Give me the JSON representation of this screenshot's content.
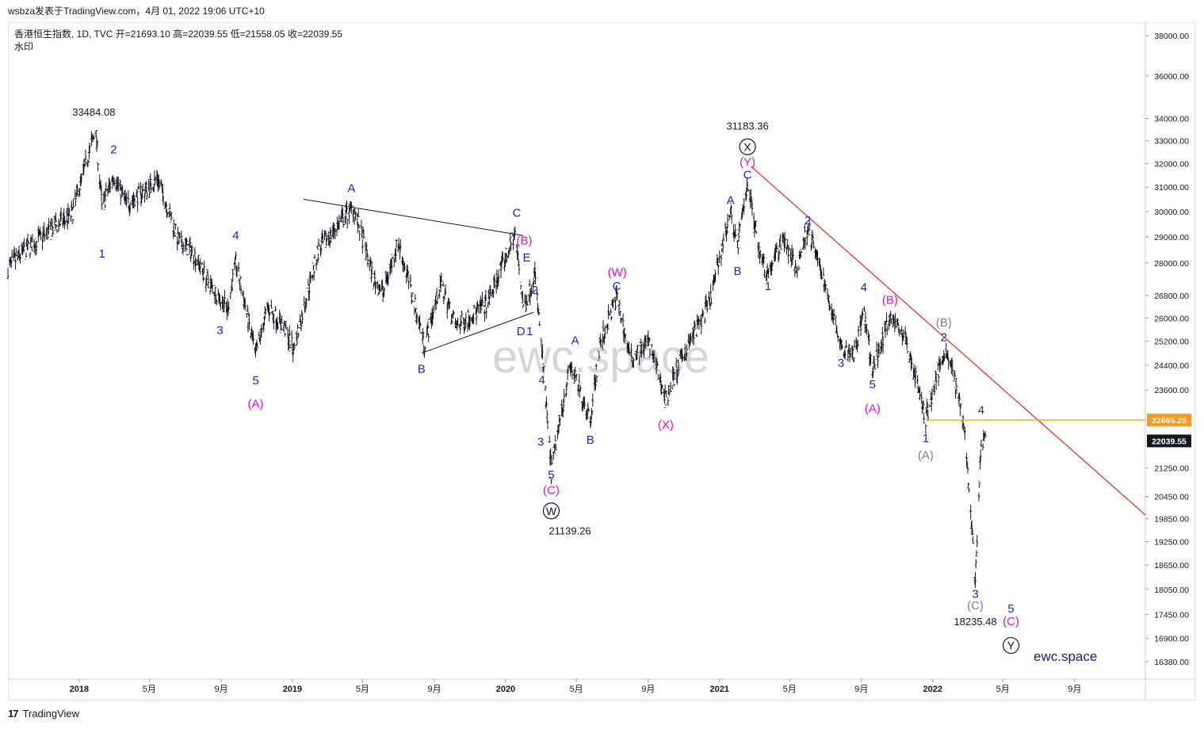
{
  "header": {
    "publisher_line": "wsbza发表于TradingView.com，4月 01, 2022 19:06 UTC+10"
  },
  "legend": {
    "symbol_line": "香港恒生指数, 1D, TVC  开=21693.10  高=22039.55  低=21558.05  收=22039.55",
    "watermark_label": "水印"
  },
  "watermark": "ewc.space",
  "brand": "ewc.space",
  "footer": {
    "logo": "17",
    "name": "TradingView"
  },
  "colors": {
    "price": "#131722",
    "blue_label": "#1e22c8",
    "magenta_label": "#e010c8",
    "grey_label": "#808080",
    "trendline": "#ee2222",
    "hline": "#f59a23",
    "triangle": "#131722"
  },
  "chart_data": {
    "type": "candlestick",
    "y_scale": "log",
    "ylim": [
      16000,
      38700
    ],
    "y_ticks": [
      "38000.00",
      "36000.00",
      "34000.00",
      "33000.00",
      "32000.00",
      "31000.00",
      "30000.00",
      "29000.00",
      "28000.00",
      "26800.00",
      "26000.00",
      "25200.00",
      "24400.00",
      "23600.00",
      "22665.25",
      "22039.55",
      "21250.00",
      "20450.00",
      "19850.00",
      "19250.00",
      "18650.00",
      "18050.00",
      "17450.00",
      "16900.00",
      "16380.00"
    ],
    "x_ticks": [
      {
        "label": "2018",
        "date": "2018-01-01",
        "bold": true
      },
      {
        "label": "5月",
        "date": "2018-05-01"
      },
      {
        "label": "9月",
        "date": "2018-09-01"
      },
      {
        "label": "2019",
        "date": "2019-01-01",
        "bold": true
      },
      {
        "label": "5月",
        "date": "2019-05-01"
      },
      {
        "label": "9月",
        "date": "2019-09-01"
      },
      {
        "label": "2020",
        "date": "2020-01-01",
        "bold": true
      },
      {
        "label": "5月",
        "date": "2020-05-01"
      },
      {
        "label": "9月",
        "date": "2020-09-01"
      },
      {
        "label": "2021",
        "date": "2021-01-01",
        "bold": true
      },
      {
        "label": "5月",
        "date": "2021-05-01"
      },
      {
        "label": "9月",
        "date": "2021-09-01"
      },
      {
        "label": "2022",
        "date": "2022-01-01",
        "bold": true
      },
      {
        "label": "5月",
        "date": "2022-05-01"
      },
      {
        "label": "9月",
        "date": "2022-09-01"
      }
    ],
    "price_badges": [
      {
        "value": "22665.25",
        "price": 22665.25,
        "color": "#f59a23"
      },
      {
        "value": "22039.55",
        "price": 22039.55,
        "color": "#131722"
      }
    ],
    "price_path": [
      [
        "2017-09-01",
        27800
      ],
      [
        "2017-10-01",
        28500
      ],
      [
        "2017-11-15",
        29300
      ],
      [
        "2017-12-20",
        29900
      ],
      [
        "2018-01-29",
        33484
      ],
      [
        "2018-02-09",
        30200
      ],
      [
        "2018-03-01",
        31500
      ],
      [
        "2018-03-23",
        30300
      ],
      [
        "2018-05-01",
        31000
      ],
      [
        "2018-05-15",
        31400
      ],
      [
        "2018-06-20",
        28800
      ],
      [
        "2018-07-15",
        28400
      ],
      [
        "2018-08-10",
        27300
      ],
      [
        "2018-09-12",
        26300
      ],
      [
        "2018-09-26",
        28000
      ],
      [
        "2018-10-30",
        24700
      ],
      [
        "2018-11-20",
        26400
      ],
      [
        "2018-12-20",
        25600
      ],
      [
        "2019-01-03",
        24900
      ],
      [
        "2019-02-15",
        28500
      ],
      [
        "2019-04-15",
        30200
      ],
      [
        "2019-05-20",
        27400
      ],
      [
        "2019-06-05",
        26900
      ],
      [
        "2019-07-01",
        28800
      ],
      [
        "2019-08-15",
        25100
      ],
      [
        "2019-09-12",
        27200
      ],
      [
        "2019-10-08",
        25700
      ],
      [
        "2019-12-01",
        26500
      ],
      [
        "2020-01-17",
        29100
      ],
      [
        "2020-02-01",
        26300
      ],
      [
        "2020-02-20",
        27600
      ],
      [
        "2020-03-19",
        21139
      ],
      [
        "2020-04-20",
        24400
      ],
      [
        "2020-05-25",
        22700
      ],
      [
        "2020-06-10",
        25000
      ],
      [
        "2020-07-09",
        26800
      ],
      [
        "2020-08-01",
        24600
      ],
      [
        "2020-09-01",
        25200
      ],
      [
        "2020-10-01",
        23300
      ],
      [
        "2020-11-01",
        24800
      ],
      [
        "2020-12-15",
        26500
      ],
      [
        "2021-01-20",
        30000
      ],
      [
        "2021-02-01",
        28600
      ],
      [
        "2021-02-18",
        31183
      ],
      [
        "2021-03-10",
        28500
      ],
      [
        "2021-03-25",
        27600
      ],
      [
        "2021-04-20",
        29000
      ],
      [
        "2021-05-13",
        27700
      ],
      [
        "2021-06-01",
        29400
      ],
      [
        "2021-07-28",
        25100
      ],
      [
        "2021-08-20",
        24800
      ],
      [
        "2021-09-05",
        26200
      ],
      [
        "2021-09-20",
        24200
      ],
      [
        "2021-10-20",
        26100
      ],
      [
        "2021-11-15",
        25300
      ],
      [
        "2021-12-20",
        22700
      ],
      [
        "2022-01-20",
        24900
      ],
      [
        "2022-02-01",
        24500
      ],
      [
        "2022-02-24",
        22500
      ],
      [
        "2022-03-15",
        18235
      ],
      [
        "2022-03-25",
        21900
      ],
      [
        "2022-04-01",
        22039
      ]
    ],
    "annotations": [
      {
        "text": "33484.08",
        "date": "2018-01-26",
        "price": 34120,
        "color": "#131722",
        "size": 13
      },
      {
        "text": "2",
        "date": "2018-03-01",
        "price": 32450,
        "color": "#1e22c8"
      },
      {
        "text": "1",
        "date": "2018-02-09",
        "price": 28200,
        "color": "#1e22c8"
      },
      {
        "text": "4",
        "date": "2018-09-26",
        "price": 28900,
        "color": "#1e22c8"
      },
      {
        "text": "3",
        "date": "2018-08-30",
        "price": 25450,
        "color": "#1e22c8"
      },
      {
        "text": "5",
        "date": "2018-10-30",
        "price": 23780,
        "color": "#1e22c8"
      },
      {
        "text": "(A)",
        "date": "2018-10-30",
        "price": 23050,
        "color": "#e010c8"
      },
      {
        "text": "A",
        "date": "2019-04-12",
        "price": 30800,
        "color": "#1e22c8"
      },
      {
        "text": "B",
        "date": "2019-08-10",
        "price": 24150,
        "color": "#1e22c8"
      },
      {
        "text": "C",
        "date": "2020-01-20",
        "price": 29800,
        "color": "#1e22c8"
      },
      {
        "text": "(B)",
        "date": "2020-02-02",
        "price": 28700,
        "color": "#e010c8"
      },
      {
        "text": "E",
        "date": "2020-02-06",
        "price": 28050,
        "color": "#1e22c8"
      },
      {
        "text": "2",
        "date": "2020-02-20",
        "price": 26850,
        "color": "#1e22c8"
      },
      {
        "text": "D",
        "date": "2020-01-27",
        "price": 25400,
        "color": "#1e22c8"
      },
      {
        "text": "1",
        "date": "2020-02-11",
        "price": 25400,
        "color": "#1e22c8"
      },
      {
        "text": "4",
        "date": "2020-03-03",
        "price": 23800,
        "color": "#1e22c8"
      },
      {
        "text": "3",
        "date": "2020-03-01",
        "price": 21900,
        "color": "#1e22c8"
      },
      {
        "text": "5",
        "date": "2020-03-19",
        "price": 20950,
        "color": "#1e22c8"
      },
      {
        "text": "(C)",
        "date": "2020-03-19",
        "price": 20520,
        "color": "#e010c8"
      },
      {
        "text": "21139.26",
        "date": "2020-04-20",
        "price": 19430,
        "color": "#131722",
        "size": 13
      },
      {
        "text": "A",
        "date": "2020-04-29",
        "price": 25100,
        "color": "#1e22c8"
      },
      {
        "text": "B",
        "date": "2020-05-25",
        "price": 21950,
        "color": "#1e22c8"
      },
      {
        "text": "(W)",
        "date": "2020-07-10",
        "price": 27500,
        "color": "#e010c8"
      },
      {
        "text": "C",
        "date": "2020-07-09",
        "price": 27000,
        "color": "#1e22c8"
      },
      {
        "text": "(X)",
        "date": "2020-10-01",
        "price": 22400,
        "color": "#e010c8"
      },
      {
        "text": "31183.36",
        "date": "2021-02-18",
        "price": 33500,
        "color": "#131722",
        "size": 13
      },
      {
        "text": "(Y)",
        "date": "2021-02-18",
        "price": 31900,
        "color": "#e010c8"
      },
      {
        "text": "C",
        "date": "2021-02-18",
        "price": 31350,
        "color": "#1e22c8"
      },
      {
        "text": "A",
        "date": "2021-01-20",
        "price": 30300,
        "color": "#1e22c8"
      },
      {
        "text": "B",
        "date": "2021-02-01",
        "price": 27550,
        "color": "#1e22c8"
      },
      {
        "text": "1",
        "date": "2021-03-25",
        "price": 27000,
        "color": "#1e22c8"
      },
      {
        "text": "2",
        "date": "2021-06-01",
        "price": 29500,
        "color": "#1e22c8"
      },
      {
        "text": "4",
        "date": "2021-09-05",
        "price": 26950,
        "color": "#1e22c8"
      },
      {
        "text": "3",
        "date": "2021-07-28",
        "price": 24350,
        "color": "#1e22c8"
      },
      {
        "text": "(B)",
        "date": "2021-10-20",
        "price": 26500,
        "color": "#e010c8"
      },
      {
        "text": "5",
        "date": "2021-09-20",
        "price": 23650,
        "color": "#1e22c8"
      },
      {
        "text": "(A)",
        "date": "2021-09-20",
        "price": 22900,
        "color": "#e010c8"
      },
      {
        "text": "(B)",
        "date": "2022-01-20",
        "price": 25700,
        "color": "#808080"
      },
      {
        "text": "2",
        "date": "2022-01-20",
        "price": 25200,
        "color": "#1e22c8"
      },
      {
        "text": "1",
        "date": "2021-12-20",
        "price": 22000,
        "color": "#1e22c8"
      },
      {
        "text": "(A)",
        "date": "2021-12-20",
        "price": 21500,
        "color": "#808080"
      },
      {
        "text": "4",
        "date": "2022-03-25",
        "price": 22850,
        "color": "#1e22c8"
      },
      {
        "text": "3",
        "date": "2022-03-15",
        "price": 17850,
        "color": "#1e22c8"
      },
      {
        "text": "(C)",
        "date": "2022-03-15",
        "price": 17570,
        "color": "#808080"
      },
      {
        "text": "18235.48",
        "date": "2022-03-15",
        "price": 17200,
        "color": "#131722",
        "size": 13
      },
      {
        "text": "5",
        "date": "2022-05-15",
        "price": 17500,
        "color": "#1e22c8"
      },
      {
        "text": "(C)",
        "date": "2022-05-15",
        "price": 17200,
        "color": "#e010c8"
      }
    ],
    "circled": [
      {
        "text": "X",
        "date": "2021-02-18",
        "price": 32730
      },
      {
        "text": "W",
        "date": "2020-03-19",
        "price": 20060
      },
      {
        "text": "Y",
        "date": "2022-05-15",
        "price": 16740
      }
    ],
    "trendline": [
      [
        "2021-02-24",
        31880
      ],
      [
        "2022-12-31",
        19950
      ]
    ],
    "hline": {
      "from": "2021-12-20",
      "to": "2022-12-31",
      "price": 22665.25
    },
    "triangle": [
      [
        [
          "2019-01-20",
          30500
        ],
        [
          "2020-01-31",
          29050
        ]
      ],
      [
        [
          "2019-08-10",
          24800
        ],
        [
          "2020-02-18",
          26200
        ]
      ]
    ]
  }
}
